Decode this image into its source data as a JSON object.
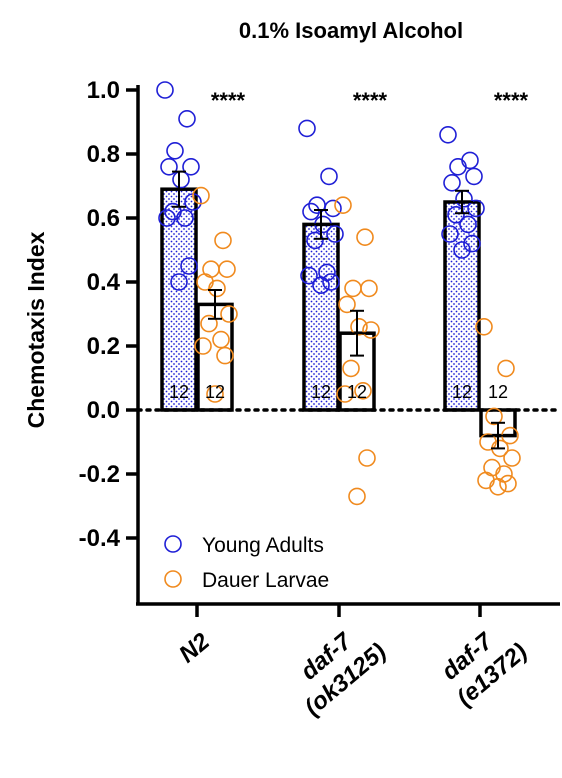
{
  "chart_data": {
    "type": "bar",
    "title": "0.1% Isoamyl Alcohol",
    "ylabel": "Chemotaxis Index",
    "ylim": [
      -0.5,
      1.0
    ],
    "yticks": [
      "1.0",
      "0.8",
      "0.6",
      "0.4",
      "0.2",
      "0.0",
      "-0.2",
      "-0.4"
    ],
    "ytick_values": [
      1.0,
      0.8,
      0.6,
      0.4,
      0.2,
      0.0,
      -0.2,
      -0.4
    ],
    "categories": [
      {
        "line1": "N2",
        "line2": ""
      },
      {
        "line1": "daf-7",
        "line2": "(ok3125)"
      },
      {
        "line1": "daf-7",
        "line2": "(e1372)"
      }
    ],
    "legend_position": "bottom-left",
    "reference_line": 0.0,
    "series": [
      {
        "name": "Young Adults",
        "color": "#1f1fd6",
        "means": [
          0.69,
          0.58,
          0.65
        ],
        "sem": [
          0.055,
          0.045,
          0.035
        ],
        "n": [
          "12",
          "12",
          "12"
        ],
        "points": [
          [
            1.0,
            0.91,
            0.81,
            0.76,
            0.76,
            0.72,
            0.65,
            0.62,
            0.6,
            0.6,
            0.45,
            0.4
          ],
          [
            0.88,
            0.73,
            0.64,
            0.63,
            0.62,
            0.58,
            0.55,
            0.53,
            0.43,
            0.42,
            0.4,
            0.39
          ],
          [
            0.86,
            0.78,
            0.76,
            0.73,
            0.71,
            0.66,
            0.63,
            0.61,
            0.58,
            0.55,
            0.52,
            0.5
          ]
        ]
      },
      {
        "name": "Dauer Larvae",
        "color": "#f08a1e",
        "means": [
          0.33,
          0.24,
          -0.08
        ],
        "sem": [
          0.045,
          0.07,
          0.04
        ],
        "n": [
          "12",
          "12",
          "12"
        ],
        "points": [
          [
            0.67,
            0.53,
            0.44,
            0.44,
            0.4,
            0.38,
            0.3,
            0.27,
            0.22,
            0.2,
            0.17,
            0.05
          ],
          [
            0.64,
            0.54,
            0.38,
            0.38,
            0.33,
            0.26,
            0.25,
            0.13,
            0.06,
            0.05,
            -0.15,
            -0.27
          ],
          [
            0.26,
            0.13,
            -0.02,
            -0.08,
            -0.1,
            -0.12,
            -0.15,
            -0.18,
            -0.2,
            -0.22,
            -0.23,
            -0.24
          ]
        ]
      }
    ],
    "annotations": [
      "****",
      "****",
      "****"
    ]
  }
}
